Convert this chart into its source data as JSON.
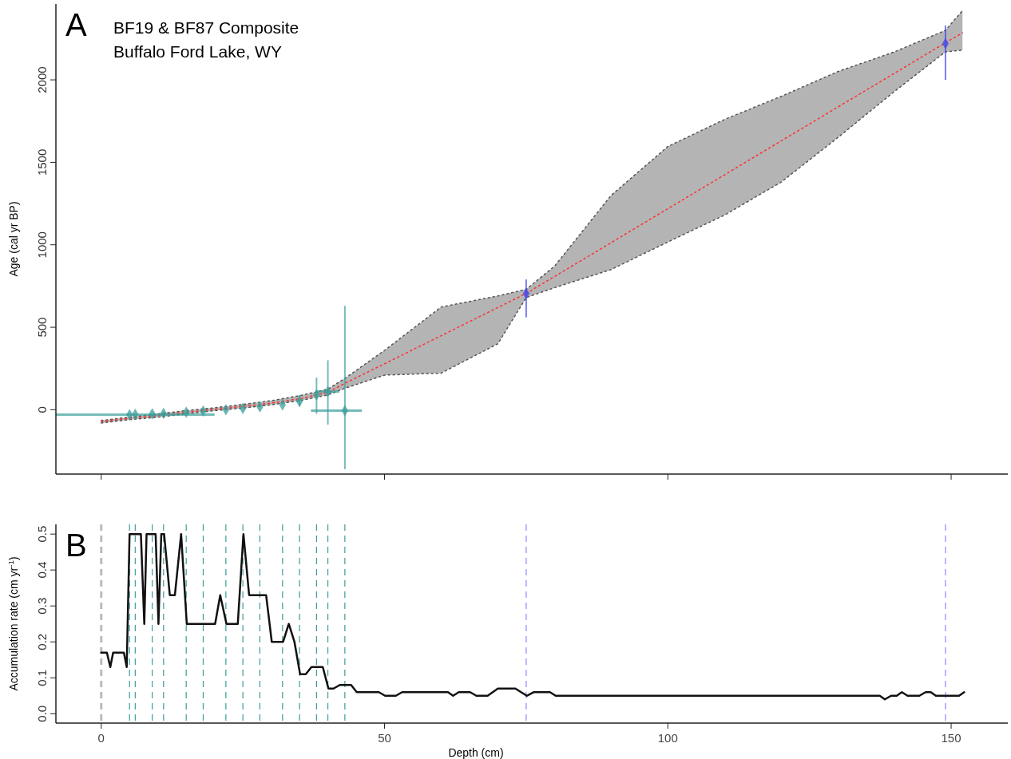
{
  "chart_data": [
    {
      "type": "line",
      "title": "BF19 & BF87 Composite",
      "subtitle": "Buffalo Ford Lake, WY",
      "ylabel": "Age (cal yr BP)",
      "annotations": [
        "A"
      ],
      "xlim": [
        -8,
        160
      ],
      "xticks": [
        0,
        50,
        100,
        150
      ],
      "ylim": [
        -390,
        2460
      ],
      "yticks": [
        0,
        500,
        1000,
        1500,
        2000
      ],
      "tick_labels": "y",
      "grid": false,
      "series": [
        {
          "color": "#555555",
          "line_style": "dotted",
          "x": [
            0,
            5,
            10,
            15,
            20,
            25,
            30,
            35,
            40,
            43,
            50,
            60,
            70,
            75,
            80,
            90,
            100,
            110,
            120,
            130,
            140,
            149,
            152
          ],
          "values": [
            -80,
            -60,
            -45,
            -25,
            -5,
            10,
            30,
            55,
            90,
            130,
            210,
            222,
            400,
            680,
            740,
            850,
            1017,
            1180,
            1380,
            1650,
            1930,
            2170,
            2180
          ]
        },
        {
          "color": "#555555",
          "line_style": "dotted",
          "x": [
            0,
            5,
            10,
            15,
            20,
            25,
            30,
            35,
            40,
            43,
            50,
            60,
            70,
            75,
            80,
            90,
            100,
            110,
            120,
            130,
            140,
            149,
            152
          ],
          "values": [
            -65,
            -45,
            -25,
            -5,
            12,
            32,
            55,
            85,
            125,
            190,
            360,
            623,
            690,
            730,
            870,
            1300,
            1596,
            1760,
            1900,
            2050,
            2170,
            2300,
            2420
          ]
        },
        {
          "color": "#ff3030",
          "line_style": "dotted",
          "x": [
            0,
            5,
            10,
            15,
            20,
            25,
            30,
            35,
            40,
            43,
            50,
            60,
            70,
            75,
            80,
            90,
            100,
            110,
            120,
            130,
            140,
            149,
            152
          ],
          "values": [
            -72,
            -52,
            -35,
            -15,
            3,
            20,
            40,
            67,
            105,
            160,
            279,
            449,
            620,
            705,
            808,
            1013,
            1219,
            1424,
            1630,
            1835,
            2040,
            2225,
            2285
          ],
          "lower": [
            -80,
            -60,
            -45,
            -25,
            -5,
            10,
            30,
            55,
            90,
            130,
            210,
            222,
            400,
            680,
            740,
            850,
            1017,
            1180,
            1380,
            1650,
            1930,
            2170,
            2180
          ],
          "upper": [
            -65,
            -45,
            -25,
            -5,
            12,
            32,
            55,
            85,
            125,
            190,
            360,
            623,
            690,
            730,
            870,
            1300,
            1596,
            1760,
            1900,
            2050,
            2170,
            2300,
            2420
          ]
        },
        {
          "type": "scatter",
          "color": "#3a9e9a",
          "marker": "diamond",
          "x": [
            5,
            6,
            9,
            11,
            15,
            18,
            22,
            25,
            28,
            32,
            35,
            38,
            40,
            43
          ],
          "values": [
            -30,
            -28,
            -25,
            -22,
            -15,
            -8,
            0,
            8,
            18,
            30,
            50,
            90,
            110,
            -5
          ],
          "errors": [
            null,
            null,
            null,
            null,
            null,
            null,
            null,
            null,
            null,
            null,
            [
              20,
              90
            ],
            [
              -25,
              195
            ],
            [
              -90,
              300
            ],
            [
              -360,
              630
            ]
          ],
          "xerrors": [
            [
              -8,
              20
            ],
            null,
            null,
            null,
            null,
            null,
            null,
            null,
            null,
            null,
            null,
            null,
            [
              38,
              42
            ],
            [
              37,
              46
            ]
          ]
        },
        {
          "type": "scatter",
          "color": "#4444ee",
          "marker": "diamond",
          "x": [
            75,
            149
          ],
          "values": [
            705,
            2220
          ],
          "errors": [
            [
              560,
              790
            ],
            [
              2000,
              2330
            ]
          ]
        }
      ]
    },
    {
      "type": "line",
      "xlabel": "Depth (cm)",
      "ylabel": "Accumulation rate (cm yr$^{-1}$)",
      "annotations": [
        "B"
      ],
      "xlim": [
        -8,
        160
      ],
      "xticks": [
        0,
        50,
        100,
        150
      ],
      "ylim": [
        -0.026,
        0.527
      ],
      "yticks": [
        {
          "value": 0,
          "label": "0.0"
        },
        0.1,
        0.2,
        0.3,
        0.4,
        0.5
      ],
      "grid": false,
      "ref_lines": [
        {
          "axis": "x",
          "value": 0,
          "color": "#bbbbbb",
          "line_style": "dashed"
        },
        {
          "axis": "x",
          "value": 5,
          "color": "#3a9e9a",
          "line_style": "dashed"
        },
        {
          "axis": "x",
          "value": 6,
          "color": "#3a9e9a",
          "line_style": "dashed"
        },
        {
          "axis": "x",
          "value": 9,
          "color": "#3a9e9a",
          "line_style": "dashed"
        },
        {
          "axis": "x",
          "value": 11,
          "color": "#3a9e9a",
          "line_style": "dashed"
        },
        {
          "axis": "x",
          "value": 15,
          "color": "#3a9e9a",
          "line_style": "dashed"
        },
        {
          "axis": "x",
          "value": 18,
          "color": "#3a9e9a",
          "line_style": "dashed"
        },
        {
          "axis": "x",
          "value": 22,
          "color": "#3a9e9a",
          "line_style": "dashed"
        },
        {
          "axis": "x",
          "value": 25,
          "color": "#3a9e9a",
          "line_style": "dashed"
        },
        {
          "axis": "x",
          "value": 28,
          "color": "#3a9e9a",
          "line_style": "dashed"
        },
        {
          "axis": "x",
          "value": 32,
          "color": "#3a9e9a",
          "line_style": "dashed"
        },
        {
          "axis": "x",
          "value": 35,
          "color": "#3a9e9a",
          "line_style": "dashed"
        },
        {
          "axis": "x",
          "value": 38,
          "color": "#3a9e9a",
          "line_style": "dashed"
        },
        {
          "axis": "x",
          "value": 40,
          "color": "#3a9e9a",
          "line_style": "dashed"
        },
        {
          "axis": "x",
          "value": 43,
          "color": "#3a9e9a",
          "line_style": "dashed"
        },
        {
          "axis": "x",
          "value": 75,
          "color": "#8888ff",
          "line_style": "dashed"
        },
        {
          "axis": "x",
          "value": 149,
          "color": "#8888ff",
          "line_style": "dashed"
        }
      ],
      "series": [
        {
          "color": "#111111",
          "line_style": "solid",
          "x": [
            0,
            1,
            1.6,
            2.1,
            4,
            4.5,
            5,
            7,
            7.6,
            8,
            9.6,
            10.1,
            10.6,
            11.1,
            12.1,
            13,
            14.1,
            15.1,
            20.1,
            21,
            22.1,
            24.1,
            25.1,
            26.1,
            29.1,
            30.1,
            32.1,
            33.1,
            34.1,
            35.1,
            36.1,
            37.1,
            39.1,
            40.1,
            41,
            42.1,
            44.1,
            45.1,
            49,
            50.1,
            52,
            53.1,
            61.2,
            62.1,
            63.1,
            65.1,
            66.2,
            68.2,
            70,
            73.1,
            75.1,
            76.3,
            79.2,
            80.2,
            137.4,
            138.3,
            139.4,
            140.4,
            141.3,
            142.3,
            144.4,
            145.5,
            146.4,
            147.3,
            151.4,
            152.3
          ],
          "values": [
            0.17,
            0.17,
            0.13,
            0.17,
            0.17,
            0.13,
            0.5,
            0.5,
            0.25,
            0.5,
            0.5,
            0.25,
            0.5,
            0.5,
            0.33,
            0.33,
            0.5,
            0.25,
            0.25,
            0.33,
            0.25,
            0.25,
            0.5,
            0.33,
            0.33,
            0.2,
            0.2,
            0.25,
            0.2,
            0.11,
            0.11,
            0.13,
            0.13,
            0.07,
            0.07,
            0.08,
            0.08,
            0.06,
            0.06,
            0.05,
            0.05,
            0.06,
            0.06,
            0.05,
            0.06,
            0.06,
            0.05,
            0.05,
            0.07,
            0.07,
            0.05,
            0.06,
            0.06,
            0.05,
            0.05,
            0.04,
            0.05,
            0.05,
            0.06,
            0.05,
            0.05,
            0.06,
            0.06,
            0.05,
            0.05,
            0.06
          ]
        }
      ]
    }
  ]
}
